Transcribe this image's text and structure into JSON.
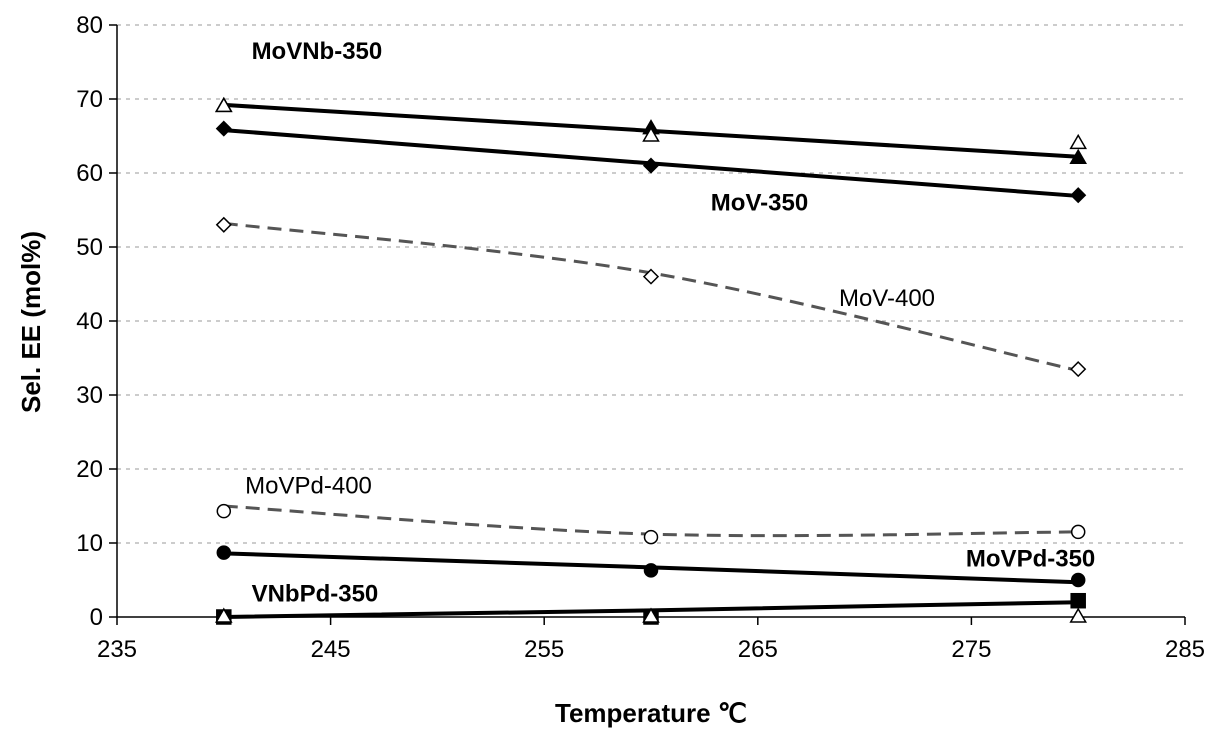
{
  "chart_data": {
    "type": "line",
    "xlabel": "Temperature ℃",
    "ylabel": "Sel. EE (mol%)",
    "xlim": [
      235,
      285
    ],
    "ylim": [
      0,
      80
    ],
    "xticks": [
      235,
      245,
      255,
      265,
      275,
      285
    ],
    "yticks": [
      0,
      10,
      20,
      30,
      40,
      50,
      60,
      70,
      80
    ],
    "grid": "horizontal dashed",
    "legend": "none (inline labels)",
    "series": [
      {
        "name": "MoVNb-350",
        "marker": "triangle",
        "filled": true,
        "x": [
          240,
          260,
          280
        ],
        "y": [
          69,
          66,
          62
        ],
        "open_y": [
          69,
          65,
          64
        ],
        "trend": "solid",
        "trend_y": [
          69.2,
          65.7,
          62.2
        ]
      },
      {
        "name": "MoV-350",
        "marker": "diamond",
        "filled": true,
        "x": [
          240,
          260,
          280
        ],
        "y": [
          66,
          61,
          57
        ],
        "trend": "solid",
        "trend_y": [
          65.8,
          61.3,
          56.9
        ]
      },
      {
        "name": "MoV-400",
        "marker": "diamond",
        "filled": false,
        "x": [
          240,
          260,
          280
        ],
        "y": [
          53,
          46,
          33.5
        ],
        "trend": "dashed",
        "trend_y": [
          53.2,
          46.5,
          33.3
        ]
      },
      {
        "name": "MoVPd-400",
        "marker": "circle",
        "filled": false,
        "x": [
          240,
          260,
          280
        ],
        "y": [
          14.3,
          10.8,
          11.5
        ],
        "trend": "dashed",
        "trend_y": [
          15,
          11.2,
          11.5
        ]
      },
      {
        "name": "MoVPd-350",
        "marker": "circle",
        "filled": true,
        "x": [
          240,
          260,
          280
        ],
        "y": [
          8.7,
          6.3,
          5
        ],
        "trend": "solid",
        "trend_y": [
          8.6,
          6.7,
          4.7
        ]
      },
      {
        "name": "VNbPd-350",
        "marker": "square",
        "filled": true,
        "x": [
          240,
          260,
          280
        ],
        "y": [
          0,
          0,
          2.2
        ],
        "trend": "solid",
        "trend_y": [
          0,
          0.9,
          2.0
        ]
      },
      {
        "name": "",
        "marker": "triangle",
        "filled": false,
        "x": [
          240,
          260,
          280
        ],
        "y": [
          0,
          0,
          0
        ]
      }
    ],
    "annotations": [
      {
        "text": "MoVNb-350",
        "bold": true
      },
      {
        "text": "MoV-350",
        "bold": true
      },
      {
        "text": "MoV-400",
        "bold": false
      },
      {
        "text": "MoVPd-400",
        "bold": false
      },
      {
        "text": "MoVPd-350",
        "bold": true
      },
      {
        "text": "VNbPd-350",
        "bold": true
      }
    ],
    "colors": {
      "solid_line": "#000000",
      "dashed_line": "#555555",
      "grid": "#9a9a9a"
    }
  }
}
